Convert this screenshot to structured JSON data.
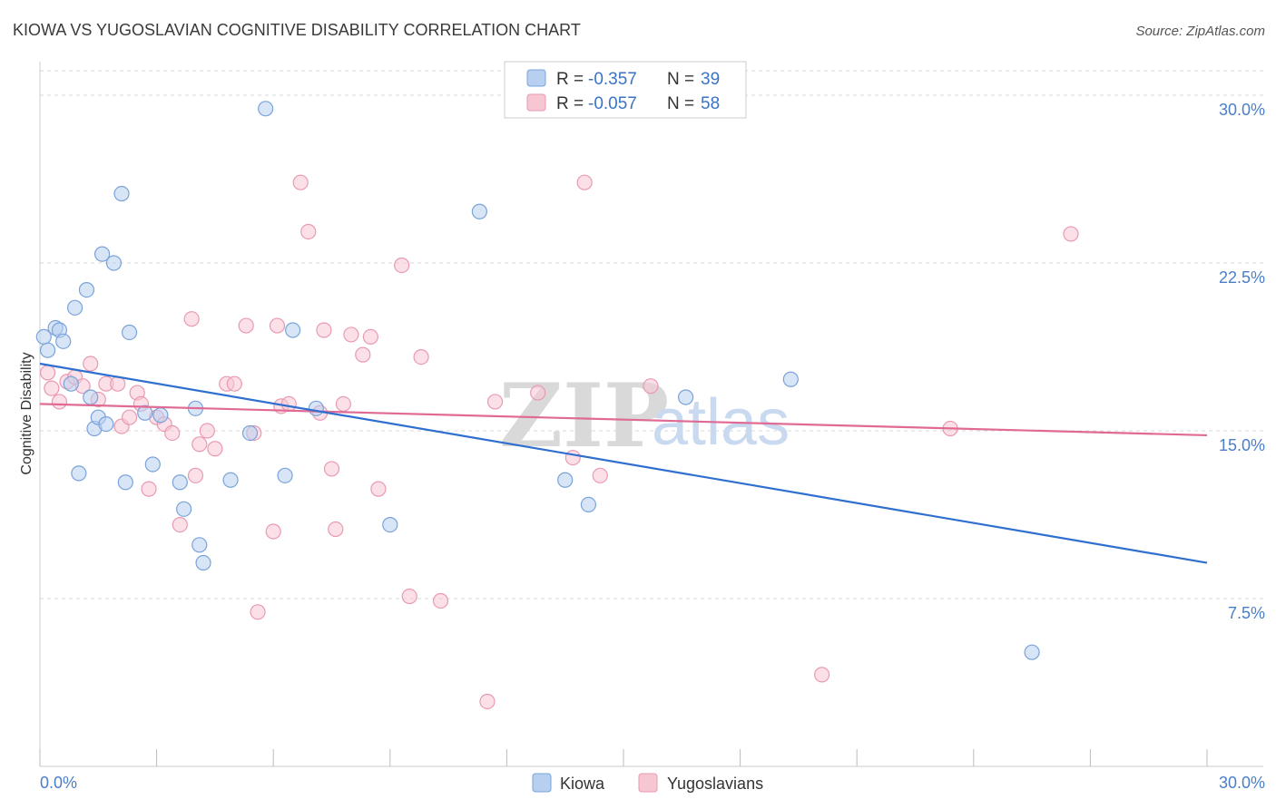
{
  "title": "KIOWA VS YUGOSLAVIAN COGNITIVE DISABILITY CORRELATION CHART",
  "source": "Source: ZipAtlas.com",
  "watermark": {
    "zip": "ZIP",
    "atlas": "atlas"
  },
  "legend_top": [
    {
      "r_label": "R =",
      "r_value": "-0.357",
      "n_label": "N =",
      "n_value": "39"
    },
    {
      "r_label": "R =",
      "r_value": "-0.057",
      "n_label": "N =",
      "n_value": "58"
    }
  ],
  "legend_bottom": [
    "Kiowa",
    "Yugoslavians"
  ],
  "colors": {
    "kiowa_fill": "#b8d0f0",
    "kiowa_stroke": "#7aa3d9",
    "kiowa_line": "#2f6fcf",
    "yugo_fill": "#f7c6d3",
    "yugo_stroke": "#e99ab2",
    "yugo_line": "#e06a94",
    "grid": "#d8d8d8",
    "tick_text": "#4a7fc8"
  },
  "chart_data": {
    "type": "scatter",
    "title": "KIOWA VS YUGOSLAVIAN COGNITIVE DISABILITY CORRELATION CHART",
    "xlabel": "",
    "ylabel": "Cognitive Disability",
    "xlim": [
      0,
      30
    ],
    "ylim": [
      0,
      31.5
    ],
    "x_ticks": [
      "0.0%",
      "30.0%"
    ],
    "y_ticks": [
      {
        "value": 7.5,
        "label": "7.5%"
      },
      {
        "value": 15.0,
        "label": "15.0%"
      },
      {
        "value": 22.5,
        "label": "22.5%"
      },
      {
        "value": 30.0,
        "label": "30.0%"
      }
    ],
    "grid": "horizontal dashed",
    "legend_position": "top-center",
    "series": [
      {
        "name": "Kiowa",
        "r": -0.357,
        "n": 39,
        "trend": {
          "x": [
            0,
            30
          ],
          "y": [
            18.0,
            9.1
          ]
        },
        "points": [
          [
            0.1,
            19.2
          ],
          [
            0.2,
            18.6
          ],
          [
            0.4,
            19.6
          ],
          [
            0.5,
            19.5
          ],
          [
            0.6,
            19.0
          ],
          [
            0.8,
            17.1
          ],
          [
            0.9,
            20.5
          ],
          [
            1.0,
            13.1
          ],
          [
            1.2,
            21.3
          ],
          [
            1.3,
            16.5
          ],
          [
            1.4,
            15.1
          ],
          [
            1.5,
            15.6
          ],
          [
            1.6,
            22.9
          ],
          [
            1.7,
            15.3
          ],
          [
            1.9,
            22.5
          ],
          [
            2.1,
            25.6
          ],
          [
            2.2,
            12.7
          ],
          [
            2.3,
            19.4
          ],
          [
            2.7,
            15.8
          ],
          [
            2.9,
            13.5
          ],
          [
            3.1,
            15.7
          ],
          [
            3.6,
            12.7
          ],
          [
            3.7,
            11.5
          ],
          [
            4.0,
            16.0
          ],
          [
            4.1,
            9.9
          ],
          [
            4.2,
            9.1
          ],
          [
            4.9,
            12.8
          ],
          [
            5.4,
            14.9
          ],
          [
            5.8,
            29.4
          ],
          [
            6.3,
            13.0
          ],
          [
            6.5,
            19.5
          ],
          [
            7.1,
            16.0
          ],
          [
            9.0,
            10.8
          ],
          [
            11.3,
            24.8
          ],
          [
            13.5,
            12.8
          ],
          [
            14.1,
            11.7
          ],
          [
            16.6,
            16.5
          ],
          [
            19.3,
            17.3
          ],
          [
            25.5,
            5.1
          ]
        ]
      },
      {
        "name": "Yugoslavians",
        "r": -0.057,
        "n": 58,
        "trend": {
          "x": [
            0,
            30
          ],
          "y": [
            16.2,
            14.8
          ]
        },
        "points": [
          [
            0.2,
            17.6
          ],
          [
            0.3,
            16.9
          ],
          [
            0.5,
            16.3
          ],
          [
            0.7,
            17.2
          ],
          [
            0.9,
            17.4
          ],
          [
            1.1,
            17.0
          ],
          [
            1.3,
            18.0
          ],
          [
            1.5,
            16.4
          ],
          [
            1.7,
            17.1
          ],
          [
            2.0,
            17.1
          ],
          [
            2.1,
            15.2
          ],
          [
            2.3,
            15.6
          ],
          [
            2.5,
            16.7
          ],
          [
            2.6,
            16.2
          ],
          [
            2.8,
            12.4
          ],
          [
            3.0,
            15.6
          ],
          [
            3.2,
            15.3
          ],
          [
            3.4,
            14.9
          ],
          [
            3.6,
            10.8
          ],
          [
            3.9,
            20.0
          ],
          [
            4.0,
            13.0
          ],
          [
            4.1,
            14.4
          ],
          [
            4.3,
            15.0
          ],
          [
            4.5,
            14.2
          ],
          [
            4.8,
            17.1
          ],
          [
            5.0,
            17.1
          ],
          [
            5.3,
            19.7
          ],
          [
            5.5,
            14.9
          ],
          [
            5.6,
            6.9
          ],
          [
            6.0,
            10.5
          ],
          [
            6.1,
            19.7
          ],
          [
            6.2,
            16.1
          ],
          [
            6.4,
            16.2
          ],
          [
            6.7,
            26.1
          ],
          [
            6.9,
            23.9
          ],
          [
            7.2,
            15.8
          ],
          [
            7.3,
            19.5
          ],
          [
            7.5,
            13.3
          ],
          [
            7.6,
            10.6
          ],
          [
            7.8,
            16.2
          ],
          [
            8.0,
            19.3
          ],
          [
            8.3,
            18.4
          ],
          [
            8.5,
            19.2
          ],
          [
            8.7,
            12.4
          ],
          [
            9.3,
            22.4
          ],
          [
            9.5,
            7.6
          ],
          [
            9.8,
            18.3
          ],
          [
            10.3,
            7.4
          ],
          [
            11.5,
            2.9
          ],
          [
            11.7,
            16.3
          ],
          [
            12.8,
            16.7
          ],
          [
            13.7,
            13.8
          ],
          [
            14.0,
            26.1
          ],
          [
            14.4,
            13.0
          ],
          [
            15.7,
            17.0
          ],
          [
            20.1,
            4.1
          ],
          [
            23.4,
            15.1
          ],
          [
            26.5,
            23.8
          ]
        ]
      }
    ]
  }
}
